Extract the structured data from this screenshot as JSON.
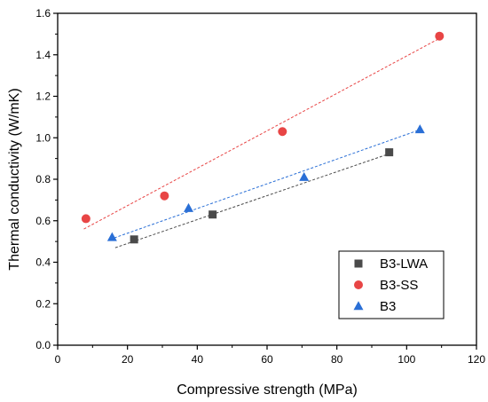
{
  "chart_data": {
    "type": "scatter",
    "title": "",
    "xlabel": "Compressive strength (MPa)",
    "ylabel": "Thermal conductivity (W/mK)",
    "xlim": [
      0,
      120
    ],
    "ylim": [
      0.0,
      1.6
    ],
    "x_ticks": [
      "0",
      "20",
      "40",
      "60",
      "80",
      "100",
      "120"
    ],
    "y_ticks": [
      "0.0",
      "0.2",
      "0.4",
      "0.6",
      "0.8",
      "1.0",
      "1.2",
      "1.4",
      "1.6"
    ],
    "grid": false,
    "legend_position": "bottom-right",
    "series": [
      {
        "name": "B3-LWA",
        "marker": "square",
        "color": "#4a4a4a",
        "x": [
          21.9,
          44.4,
          95.0
        ],
        "y": [
          0.51,
          0.63,
          0.93
        ],
        "fit": {
          "x": [
            16.5,
            94.5
          ],
          "y": [
            0.47,
            0.92
          ]
        }
      },
      {
        "name": "B3-SS",
        "marker": "circle",
        "color": "#e84545",
        "x": [
          8.1,
          30.6,
          64.4,
          109.4
        ],
        "y": [
          0.61,
          0.72,
          1.03,
          1.49
        ],
        "fit": {
          "x": [
            7.5,
            109.5
          ],
          "y": [
            0.56,
            1.48
          ]
        }
      },
      {
        "name": "B3",
        "marker": "triangle",
        "color": "#2a6fd6",
        "x": [
          15.6,
          37.5,
          70.6,
          103.8
        ],
        "y": [
          0.52,
          0.66,
          0.81,
          1.04
        ],
        "fit": {
          "x": [
            15.0,
            104.0
          ],
          "y": [
            0.51,
            1.04
          ]
        }
      }
    ]
  }
}
